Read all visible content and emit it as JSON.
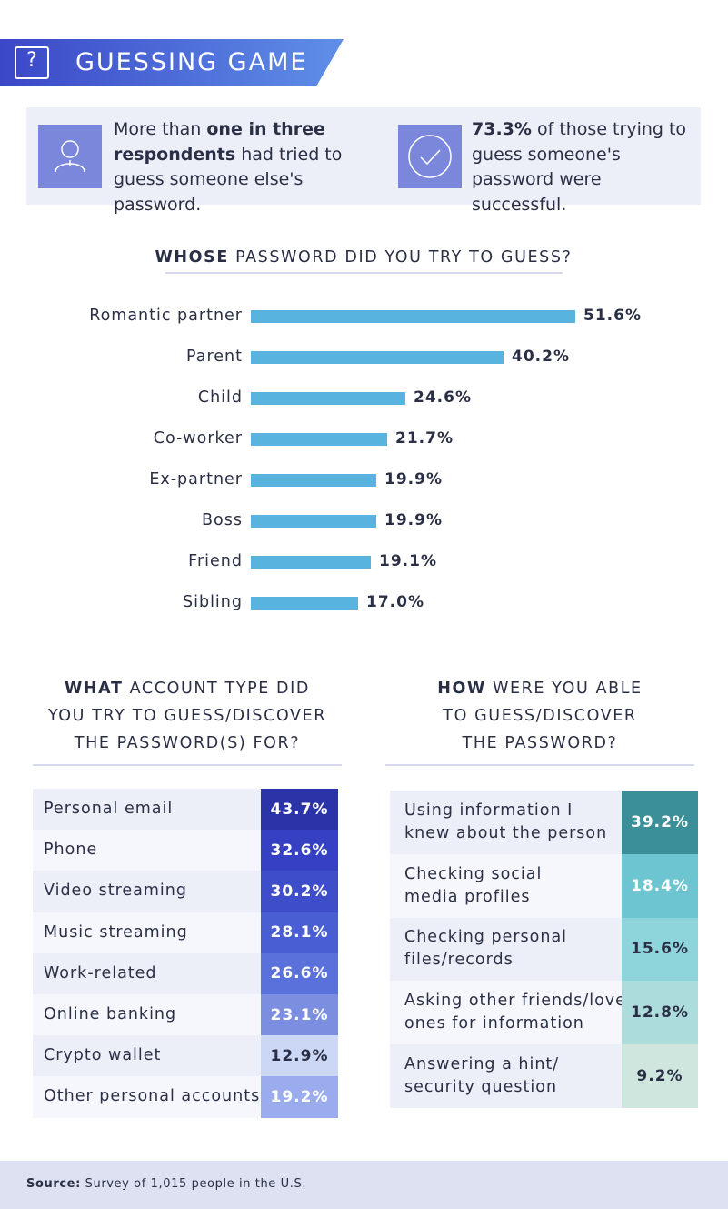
{
  "header": {
    "title": "GUESSING GAME",
    "icon": "question-mark-icon",
    "color_from": "#3b47c7",
    "color_to": "#5f8fe8"
  },
  "stats": [
    {
      "icon": "person-icon",
      "pre": "More than ",
      "bold": "one in three respondents",
      "post": " had tried to guess someone else's password."
    },
    {
      "icon": "checkmark-icon",
      "pre": "",
      "bold": "73.3%",
      "post": " of those trying to guess someone's password were successful."
    }
  ],
  "chart_data": [
    {
      "type": "bar",
      "title_bold": "WHOSE",
      "title_rest": " PASSWORD DID YOU TRY TO GUESS?",
      "categories": [
        "Romantic partner",
        "Parent",
        "Child",
        "Co-worker",
        "Ex-partner",
        "Boss",
        "Friend",
        "Sibling"
      ],
      "values": [
        51.6,
        40.2,
        24.6,
        21.7,
        19.9,
        19.9,
        19.1,
        17.0
      ],
      "value_labels": [
        "51.6%",
        "40.2%",
        "24.6%",
        "21.7%",
        "19.9%",
        "19.9%",
        "19.1%",
        "17.0%"
      ],
      "bar_color": "#58b3df",
      "xlim": [
        0,
        51.6
      ]
    },
    {
      "type": "table",
      "title_bold": "WHAT",
      "title_lines": [
        " ACCOUNT TYPE DID",
        "YOU TRY TO GUESS/DISCOVER",
        "THE PASSWORD(S) FOR?"
      ],
      "categories": [
        "Personal email",
        "Phone",
        "Video streaming",
        "Music streaming",
        "Work-related",
        "Online banking",
        "Crypto wallet",
        "Other personal accounts"
      ],
      "values": [
        43.7,
        32.6,
        30.2,
        28.1,
        26.6,
        23.1,
        12.9,
        19.2
      ],
      "value_labels": [
        "43.7%",
        "32.6%",
        "30.2%",
        "28.1%",
        "26.6%",
        "23.1%",
        "12.9%",
        "19.2%"
      ],
      "cell_colors": [
        "#2a34a8",
        "#3540c2",
        "#3e4dc9",
        "#4a5ed3",
        "#5a70da",
        "#7b8ee0",
        "#ccd7f6",
        "#9aabee"
      ],
      "text_colors": [
        "#ffffff",
        "#ffffff",
        "#ffffff",
        "#ffffff",
        "#ffffff",
        "#ffffff",
        "#2a2f45",
        "#ffffff"
      ]
    },
    {
      "type": "table",
      "title_bold": "HOW",
      "title_lines": [
        " WERE YOU ABLE",
        "TO GUESS/DISCOVER",
        "THE PASSWORD?"
      ],
      "categories": [
        [
          "Using information I",
          "knew about the person"
        ],
        [
          "Checking social",
          "media profiles"
        ],
        [
          "Checking personal",
          "files/records"
        ],
        [
          "Asking other friends/loved",
          "ones for information"
        ],
        [
          "Answering a hint/",
          "security question"
        ]
      ],
      "values": [
        39.2,
        18.4,
        15.6,
        12.8,
        9.2
      ],
      "value_labels": [
        "39.2%",
        "18.4%",
        "15.6%",
        "12.8%",
        "9.2%"
      ],
      "cell_colors": [
        "#3a8f98",
        "#6cc5d0",
        "#8dd5da",
        "#acdcdc",
        "#cfe6df"
      ],
      "text_colors": [
        "#ffffff",
        "#ffffff",
        "#2a2f45",
        "#2a2f45",
        "#2a2f45"
      ]
    }
  ],
  "footer": {
    "source_label": "Source:",
    "source_text": " Survey of 1,015 people in the U.S."
  }
}
